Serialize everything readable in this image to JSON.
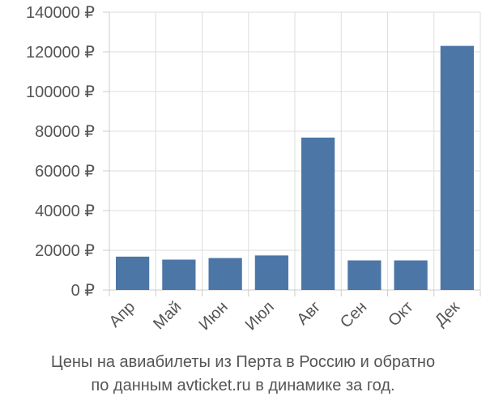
{
  "chart_data": {
    "type": "bar",
    "categories": [
      "Апр",
      "Май",
      "Июн",
      "Июл",
      "Авг",
      "Сен",
      "Окт",
      "Дек"
    ],
    "values": [
      16800,
      15300,
      16100,
      17400,
      76800,
      14900,
      14900,
      123000
    ],
    "ylim": [
      0,
      140000
    ],
    "yticks": [
      0,
      20000,
      40000,
      60000,
      80000,
      100000,
      120000,
      140000
    ],
    "ytick_labels": [
      "0 ₽",
      "20000 ₽",
      "40000 ₽",
      "60000 ₽",
      "80000 ₽",
      "100000 ₽",
      "120000 ₽",
      "140000 ₽"
    ],
    "grid": true,
    "bar_color": "#4c76a6",
    "grid_color": "#dddddd",
    "text_color": "#555555"
  },
  "caption": {
    "line1": "Цены на авиабилеты из Перта в Россию и обратно",
    "line2": "по данным avticket.ru в динамике за год."
  }
}
